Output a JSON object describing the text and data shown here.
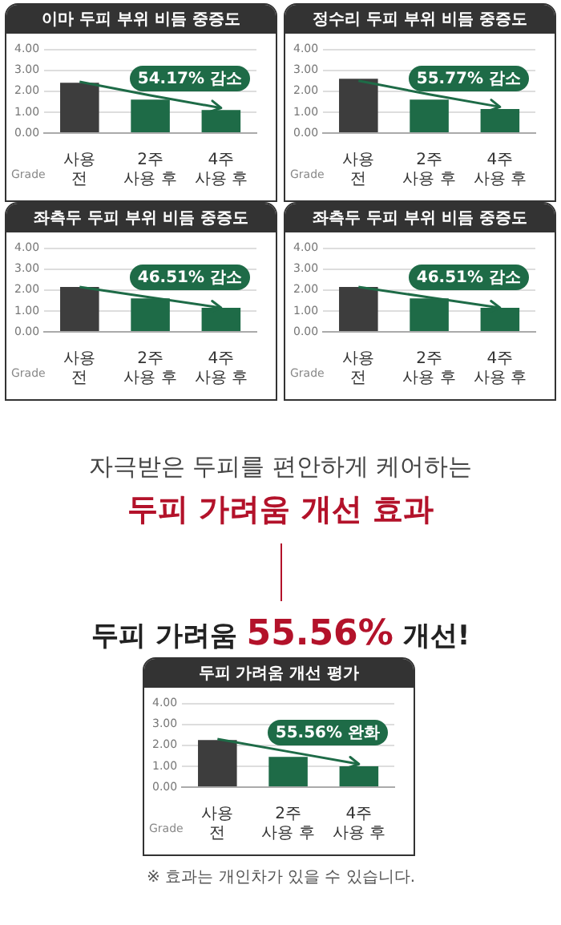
{
  "chart_data": [
    {
      "type": "bar",
      "title": "이마 두피 부위 비듬 중증도",
      "ylabel": "Grade",
      "categories": [
        "사용 전",
        "2주 사용 후",
        "4주 사용 후"
      ],
      "series": [
        {
          "type": "bar",
          "colors": [
            "#3d3d3d",
            "#1e6b47",
            "#1e6b47"
          ],
          "values": [
            2.4,
            1.6,
            1.1
          ]
        },
        {
          "type": "line",
          "color": "#1e6b47",
          "values": [
            2.45,
            1.8,
            1.2
          ]
        }
      ],
      "ylim": [
        0,
        4.2
      ],
      "yticks": [
        {
          "value": 0,
          "label": "0.00"
        },
        {
          "value": 1,
          "label": "1.00"
        },
        {
          "value": 2,
          "label": "2.00"
        },
        {
          "value": 3,
          "label": "3.00"
        },
        {
          "value": 4,
          "label": "4.00"
        }
      ],
      "grid": "y",
      "marker": "none",
      "annotations": [
        "54.17% 감소"
      ]
    },
    {
      "type": "bar",
      "title": "정수리 두피 부위 비듬 중증도",
      "ylabel": "Grade",
      "categories": [
        "사용 전",
        "2주 사용 후",
        "4주 사용 후"
      ],
      "series": [
        {
          "type": "bar",
          "colors": [
            "#3d3d3d",
            "#1e6b47",
            "#1e6b47"
          ],
          "values": [
            2.6,
            1.6,
            1.15
          ]
        },
        {
          "type": "line",
          "color": "#1e6b47",
          "values": [
            2.5,
            1.85,
            1.25
          ]
        }
      ],
      "ylim": [
        0,
        4.2
      ],
      "yticks": [
        {
          "value": 0,
          "label": "0.00"
        },
        {
          "value": 1,
          "label": "1.00"
        },
        {
          "value": 2,
          "label": "2.00"
        },
        {
          "value": 3,
          "label": "3.00"
        },
        {
          "value": 4,
          "label": "4.00"
        }
      ],
      "grid": "y",
      "marker": "none",
      "annotations": [
        "55.77% 감소"
      ]
    },
    {
      "type": "bar",
      "title": "좌측두 두피 부위 비듬 중증도",
      "ylabel": "Grade",
      "categories": [
        "사용 전",
        "2주 사용 후",
        "4주 사용 후"
      ],
      "series": [
        {
          "type": "bar",
          "colors": [
            "#3d3d3d",
            "#1e6b47",
            "#1e6b47"
          ],
          "values": [
            2.15,
            1.6,
            1.15
          ]
        },
        {
          "type": "line",
          "color": "#1e6b47",
          "values": [
            2.15,
            1.65,
            1.15
          ]
        }
      ],
      "ylim": [
        0,
        4.2
      ],
      "yticks": [
        {
          "value": 0,
          "label": "0.00"
        },
        {
          "value": 1,
          "label": "1.00"
        },
        {
          "value": 2,
          "label": "2.00"
        },
        {
          "value": 3,
          "label": "3.00"
        },
        {
          "value": 4,
          "label": "4.00"
        }
      ],
      "grid": "y",
      "marker": "none",
      "annotations": [
        "46.51% 감소"
      ]
    },
    {
      "type": "bar",
      "title": "좌측두 두피 부위 비듬 중증도",
      "ylabel": "Grade",
      "categories": [
        "사용 전",
        "2주 사용 후",
        "4주 사용 후"
      ],
      "series": [
        {
          "type": "bar",
          "colors": [
            "#3d3d3d",
            "#1e6b47",
            "#1e6b47"
          ],
          "values": [
            2.15,
            1.6,
            1.15
          ]
        },
        {
          "type": "line",
          "color": "#1e6b47",
          "values": [
            2.15,
            1.65,
            1.15
          ]
        }
      ],
      "ylim": [
        0,
        4.2
      ],
      "yticks": [
        {
          "value": 0,
          "label": "0.00"
        },
        {
          "value": 1,
          "label": "1.00"
        },
        {
          "value": 2,
          "label": "2.00"
        },
        {
          "value": 3,
          "label": "3.00"
        },
        {
          "value": 4,
          "label": "4.00"
        }
      ],
      "grid": "y",
      "marker": "none",
      "annotations": [
        "46.51% 감소"
      ]
    },
    {
      "type": "other",
      "subtitle": "자극받은 두피를 편안하게 케어하는",
      "title": "두피 가려움 개선 효과",
      "annotations": [
        "두피 가려움 55.56% 개선!"
      ]
    },
    {
      "type": "bar",
      "title": "두피 가려움 개선 평가",
      "ylabel": "Grade",
      "categories": [
        "사용 전",
        "2주 사용 후",
        "4주 사용 후"
      ],
      "series": [
        {
          "type": "bar",
          "colors": [
            "#3d3d3d",
            "#1e6b47",
            "#1e6b47"
          ],
          "values": [
            2.25,
            1.45,
            1.0
          ]
        },
        {
          "type": "line",
          "color": "#1e6b47",
          "values": [
            2.3,
            1.7,
            1.1
          ]
        }
      ],
      "ylim": [
        0,
        4.2
      ],
      "yticks": [
        {
          "value": 0,
          "label": "0.00"
        },
        {
          "value": 1,
          "label": "1.00"
        },
        {
          "value": 2,
          "label": "2.00"
        },
        {
          "value": 3,
          "label": "3.00"
        },
        {
          "value": 4,
          "label": "4.00"
        }
      ],
      "grid": "y",
      "marker": "none",
      "annotations": [
        "55.56% 완화",
        "※ 효과는 개인차가 있을 수 있습니다."
      ]
    }
  ]
}
